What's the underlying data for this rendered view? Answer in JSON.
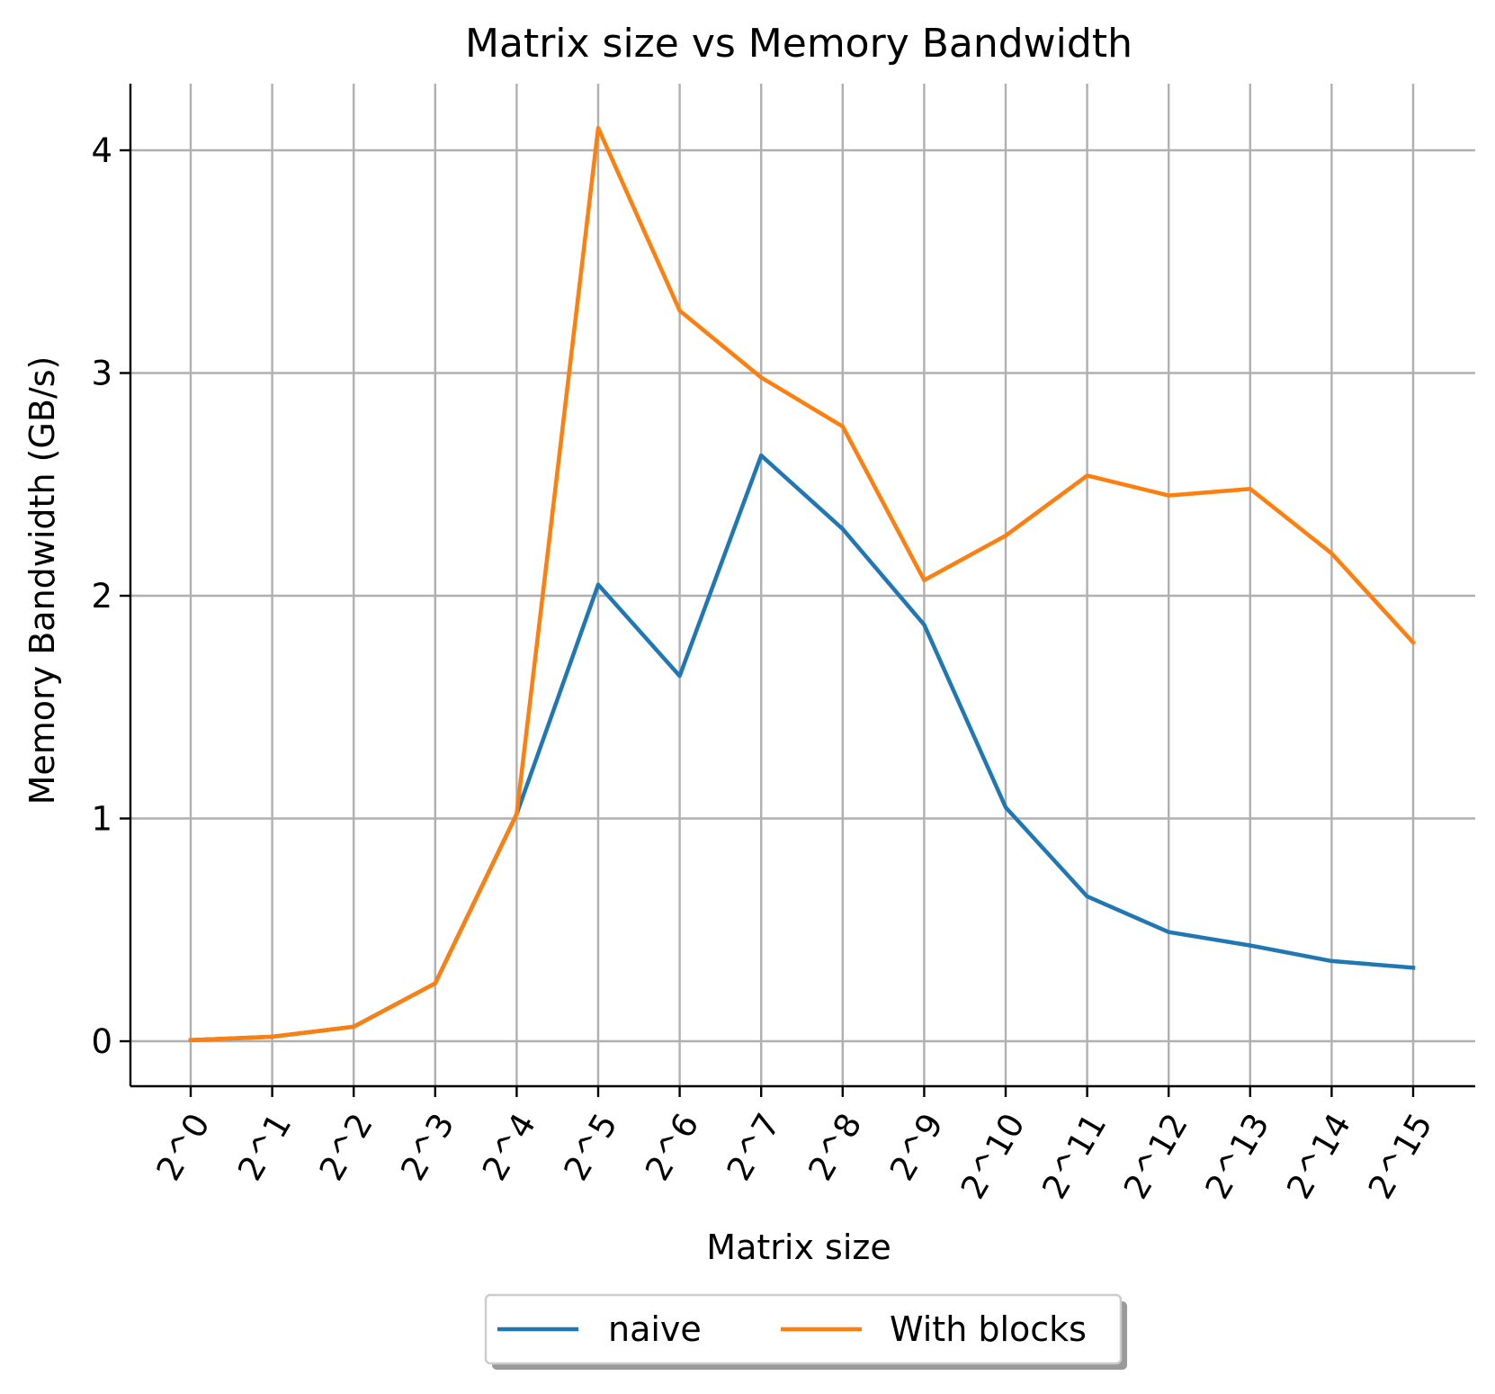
{
  "chart_data": {
    "type": "line",
    "title": "Matrix size vs Memory Bandwidth",
    "xlabel": "Matrix size",
    "ylabel": "Memory Bandwidth (GB/s)",
    "categories": [
      "2^0",
      "2^1",
      "2^2",
      "2^3",
      "2^4",
      "2^5",
      "2^6",
      "2^7",
      "2^8",
      "2^9",
      "2^10",
      "2^11",
      "2^12",
      "2^13",
      "2^14",
      "2^15"
    ],
    "y_ticks": [
      "0",
      "1",
      "2",
      "3",
      "4"
    ],
    "ylim": [
      -0.2,
      4.3
    ],
    "grid": true,
    "legend_position": "bottom-center",
    "series": [
      {
        "name": "naive",
        "color": "#1f77b4",
        "values": [
          0.005,
          0.02,
          0.065,
          0.26,
          1.02,
          2.05,
          1.64,
          2.63,
          2.3,
          1.87,
          1.05,
          0.65,
          0.49,
          0.43,
          0.36,
          0.33
        ]
      },
      {
        "name": "With blocks",
        "color": "#ff7f0e",
        "values": [
          0.005,
          0.02,
          0.065,
          0.26,
          1.02,
          4.1,
          3.28,
          2.98,
          2.76,
          2.07,
          2.27,
          2.54,
          2.45,
          2.48,
          2.19,
          1.79
        ]
      }
    ]
  }
}
